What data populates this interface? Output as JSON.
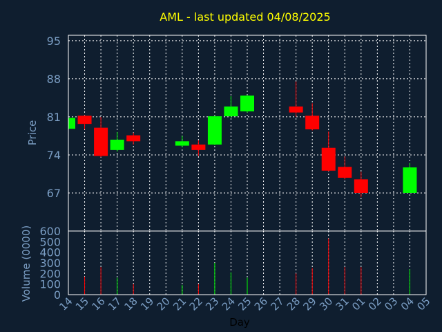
{
  "colors": {
    "background": "#0f1e2f",
    "axis": "#ffffff",
    "grid": "#ffffff",
    "title": "#ffff00",
    "labels": "#7b9ec4",
    "up": "#00ff00",
    "down": "#ff0000"
  },
  "chart_data": [
    {
      "type": "candlestick",
      "title": "AML - last updated 04/08/2025",
      "ylabel": "Price",
      "ylim": [
        60,
        96
      ],
      "yticks": [
        67,
        74,
        81,
        88,
        95
      ],
      "grid": true,
      "categories": [
        "14",
        "15",
        "16",
        "17",
        "18",
        "19",
        "20",
        "21",
        "22",
        "23",
        "24",
        "25",
        "26",
        "27",
        "28",
        "29",
        "30",
        "31",
        "01",
        "02",
        "03",
        "04",
        "05"
      ],
      "candles": [
        {
          "day": "14",
          "open": 78.8,
          "close": 80.8,
          "high": 81.0,
          "low": 78.6
        },
        {
          "day": "15",
          "open": 81.2,
          "close": 79.7,
          "high": 81.3,
          "low": 78.7
        },
        {
          "day": "16",
          "open": 79.0,
          "close": 73.8,
          "high": 81.0,
          "low": 73.6
        },
        {
          "day": "17",
          "open": 74.9,
          "close": 76.8,
          "high": 78.2,
          "low": 74.6
        },
        {
          "day": "18",
          "open": 77.6,
          "close": 76.5,
          "high": 78.1,
          "low": 75.9
        },
        {
          "day": "21",
          "open": 75.7,
          "close": 76.5,
          "high": 77.5,
          "low": 75.4
        },
        {
          "day": "22",
          "open": 75.9,
          "close": 74.9,
          "high": 76.7,
          "low": 73.8
        },
        {
          "day": "23",
          "open": 75.9,
          "close": 81.1,
          "high": 81.2,
          "low": 75.8
        },
        {
          "day": "24",
          "open": 81.1,
          "close": 82.9,
          "high": 84.8,
          "low": 80.9
        },
        {
          "day": "25",
          "open": 82.0,
          "close": 84.9,
          "high": 85.0,
          "low": 81.8
        },
        {
          "day": "28",
          "open": 82.9,
          "close": 81.8,
          "high": 87.5,
          "low": 81.0
        },
        {
          "day": "29",
          "open": 81.2,
          "close": 78.7,
          "high": 83.5,
          "low": 78.5
        },
        {
          "day": "30",
          "open": 75.3,
          "close": 71.1,
          "high": 78.3,
          "low": 71.0
        },
        {
          "day": "31",
          "open": 71.8,
          "close": 69.8,
          "high": 73.7,
          "low": 69.5
        },
        {
          "day": "01",
          "open": 69.5,
          "close": 67.0,
          "high": 70.9,
          "low": 66.2
        },
        {
          "day": "04",
          "open": 67.0,
          "close": 71.7,
          "high": 72.5,
          "low": 67.0
        }
      ]
    },
    {
      "type": "bar",
      "xlabel": "Day",
      "ylabel": "Volume (0000)",
      "ylim": [
        0,
        600
      ],
      "yticks": [
        0,
        100,
        200,
        300,
        400,
        500,
        600
      ],
      "categories": [
        "14",
        "15",
        "16",
        "17",
        "18",
        "19",
        "20",
        "21",
        "22",
        "23",
        "24",
        "25",
        "26",
        "27",
        "28",
        "29",
        "30",
        "31",
        "01",
        "02",
        "03",
        "04",
        "05"
      ],
      "bars": [
        {
          "day": "14",
          "value": 0,
          "direction": "up"
        },
        {
          "day": "15",
          "value": 170,
          "direction": "down"
        },
        {
          "day": "16",
          "value": 260,
          "direction": "down"
        },
        {
          "day": "17",
          "value": 160,
          "direction": "up"
        },
        {
          "day": "18",
          "value": 100,
          "direction": "down"
        },
        {
          "day": "21",
          "value": 90,
          "direction": "up"
        },
        {
          "day": "22",
          "value": 100,
          "direction": "down"
        },
        {
          "day": "23",
          "value": 300,
          "direction": "up"
        },
        {
          "day": "24",
          "value": 210,
          "direction": "up"
        },
        {
          "day": "25",
          "value": 160,
          "direction": "up"
        },
        {
          "day": "28",
          "value": 200,
          "direction": "down"
        },
        {
          "day": "29",
          "value": 250,
          "direction": "down"
        },
        {
          "day": "30",
          "value": 530,
          "direction": "down"
        },
        {
          "day": "31",
          "value": 260,
          "direction": "down"
        },
        {
          "day": "01",
          "value": 260,
          "direction": "down"
        },
        {
          "day": "04",
          "value": 240,
          "direction": "up"
        }
      ]
    }
  ]
}
